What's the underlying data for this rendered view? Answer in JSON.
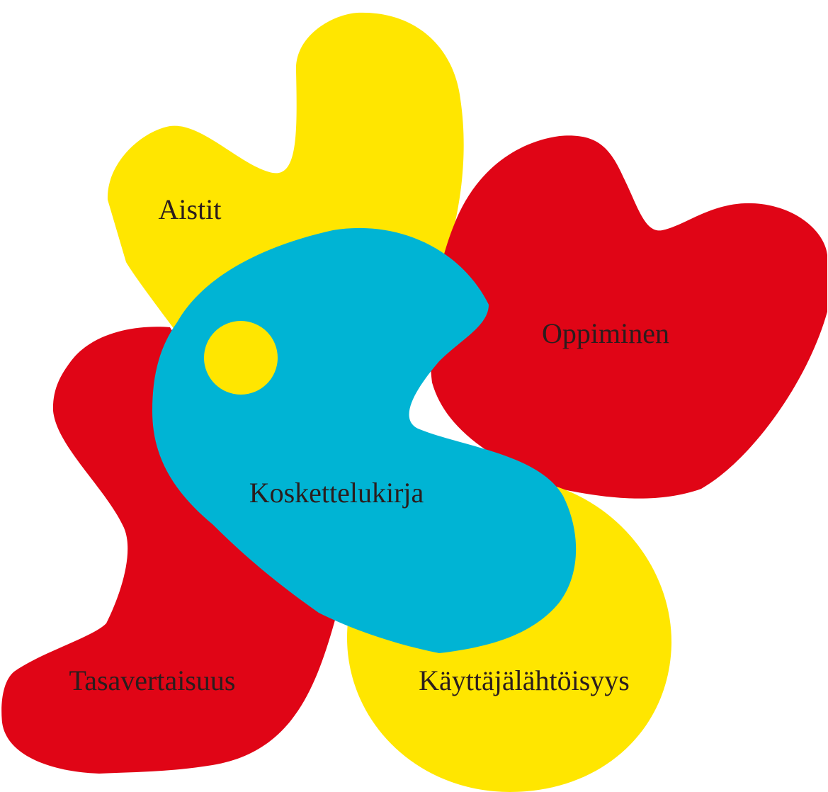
{
  "nodes": [
    {
      "label": "Aistit"
    },
    {
      "label": "Oppiminen"
    },
    {
      "label": "Koskettelukirja"
    },
    {
      "label": "Tasavertaisuus"
    },
    {
      "label": "Käyttäjälähtöisyys"
    }
  ]
}
